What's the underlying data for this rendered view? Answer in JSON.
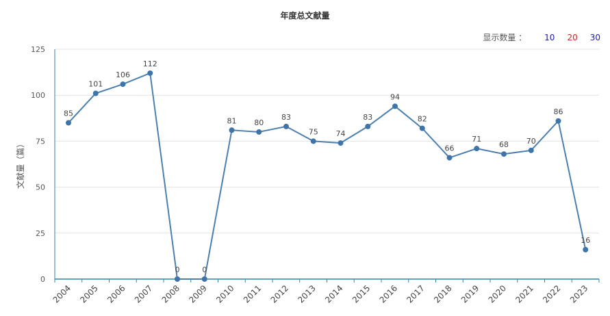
{
  "chart_data": {
    "type": "line",
    "title": "年度总文献量",
    "ylabel": "文献量（篇）",
    "xlabel": "",
    "ylim": [
      0,
      125
    ],
    "yticks": [
      0,
      25,
      50,
      75,
      100,
      125
    ],
    "grid": true,
    "categories": [
      "2004",
      "2005",
      "2006",
      "2007",
      "2008",
      "2009",
      "2010",
      "2011",
      "2012",
      "2013",
      "2014",
      "2015",
      "2016",
      "2017",
      "2018",
      "2019",
      "2020",
      "2021",
      "2022",
      "2023"
    ],
    "series": [
      {
        "values": [
          85,
          101,
          106,
          112,
          0,
          0,
          81,
          80,
          83,
          75,
          74,
          83,
          94,
          82,
          66,
          71,
          68,
          70,
          86,
          16
        ]
      }
    ],
    "colors": {
      "line": "#4a7fb0",
      "point": "#3f74a8",
      "axis": "#2e86a8",
      "grid": "#e3e3e3"
    }
  },
  "controls": {
    "label": "显示数量 ：",
    "options": [
      {
        "text": "10",
        "color": "#1a1aa8"
      },
      {
        "text": "20",
        "color": "#cc1f1f"
      },
      {
        "text": "30",
        "color": "#1a1aa8"
      }
    ]
  }
}
